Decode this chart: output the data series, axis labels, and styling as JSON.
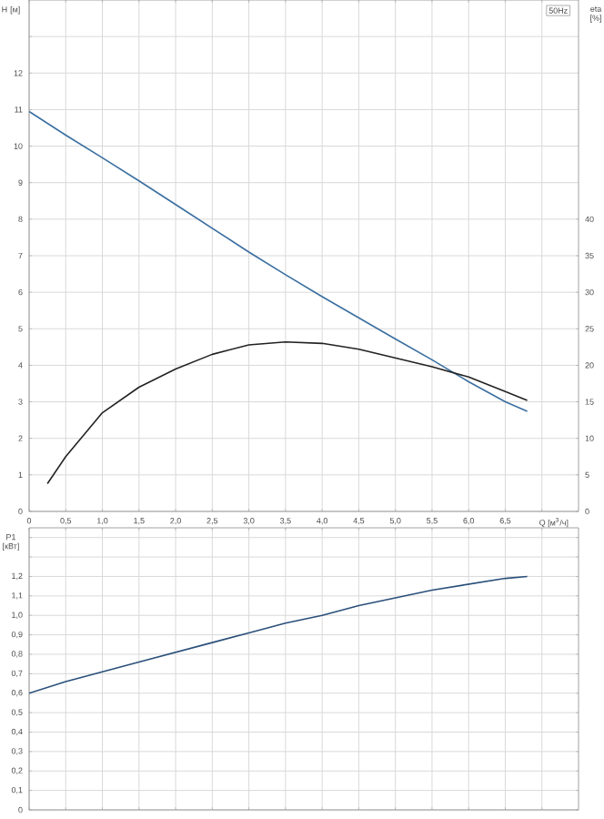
{
  "chart_data": [
    {
      "type": "line",
      "xlabel": "Q [м$^{3}$/ч]",
      "ylabel": "H [м]",
      "y2label": "eta [%]",
      "annotations": [
        "50Hz"
      ],
      "xlim": [
        0,
        7.5
      ],
      "ylim": [
        0,
        14
      ],
      "y2lim": [
        0,
        70
      ],
      "grid": true,
      "xticks": [
        0,
        {
          "value": 0.5,
          "label": "0,5"
        },
        {
          "value": 1.0,
          "label": "1,0"
        },
        {
          "value": 1.5,
          "label": "1,5"
        },
        {
          "value": 2.0,
          "label": "2,0"
        },
        {
          "value": 2.5,
          "label": "2,5"
        },
        {
          "value": 3.0,
          "label": "3,0"
        },
        {
          "value": 3.5,
          "label": "3,5"
        },
        {
          "value": 4.0,
          "label": "4,0"
        },
        {
          "value": 4.5,
          "label": "4,5"
        },
        {
          "value": 5.0,
          "label": "5,0"
        },
        {
          "value": 5.5,
          "label": "5,5"
        },
        {
          "value": 6.0,
          "label": "6,0"
        },
        {
          "value": 6.5,
          "label": "6,5"
        },
        {
          "value": 7.0,
          "label": null
        }
      ],
      "yticks": [
        0,
        1,
        2,
        3,
        4,
        5,
        6,
        7,
        8,
        9,
        10,
        11,
        12,
        {
          "value": 13,
          "label": null
        }
      ],
      "y2ticks": [
        0,
        5,
        10,
        15,
        20,
        25,
        30,
        35,
        40
      ],
      "series": [
        {
          "color": "#3a6fa0",
          "x": [
            0,
            0.5,
            1.0,
            1.5,
            2.0,
            2.5,
            3.0,
            3.5,
            4.0,
            4.5,
            5.0,
            5.5,
            6.0,
            6.5,
            6.8
          ],
          "values": [
            10.95,
            10.3,
            9.68,
            9.05,
            8.4,
            7.75,
            7.1,
            6.48,
            5.88,
            5.3,
            4.72,
            4.15,
            3.55,
            3.0,
            2.74
          ]
        },
        {
          "color": "#222222",
          "axis": "y2",
          "x": [
            0.25,
            0.5,
            1.0,
            1.5,
            2.0,
            2.5,
            3.0,
            3.5,
            4.0,
            4.5,
            5.0,
            5.5,
            6.0,
            6.5,
            6.8
          ],
          "values": [
            3.8,
            7.5,
            13.5,
            17,
            19.5,
            21.5,
            22.8,
            23.2,
            23.0,
            22.2,
            21.0,
            19.8,
            18.4,
            16.4,
            15.2
          ]
        }
      ]
    },
    {
      "type": "line",
      "ylabel": "P1 [кВт]",
      "tick_labels": "y",
      "xlim": [
        0,
        7.5
      ],
      "ylim": [
        0,
        1.45
      ],
      "grid": true,
      "xticks": [
        0,
        0.5,
        1.0,
        1.5,
        2.0,
        2.5,
        3.0,
        3.5,
        4.0,
        4.5,
        5.0,
        5.5,
        6.0,
        6.5,
        7.0
      ],
      "yticks": [
        0,
        {
          "value": 0.1,
          "label": "0,1"
        },
        {
          "value": 0.2,
          "label": "0,2"
        },
        {
          "value": 0.3,
          "label": "0,3"
        },
        {
          "value": 0.4,
          "label": "0,4"
        },
        {
          "value": 0.5,
          "label": "0,5"
        },
        {
          "value": 0.6,
          "label": "0,6"
        },
        {
          "value": 0.7,
          "label": "0,7"
        },
        {
          "value": 0.8,
          "label": "0,8"
        },
        {
          "value": 0.9,
          "label": "0,9"
        },
        {
          "value": 1.0,
          "label": "1,0"
        },
        {
          "value": 1.1,
          "label": "1,1"
        },
        {
          "value": 1.2,
          "label": "1,2"
        },
        {
          "value": 1.3,
          "label": null
        },
        {
          "value": 1.4,
          "label": null
        }
      ],
      "series": [
        {
          "color": "#2a4f7a",
          "x": [
            0,
            0.5,
            1.0,
            1.5,
            2.0,
            2.5,
            3.0,
            3.5,
            4.0,
            4.5,
            5.0,
            5.5,
            6.0,
            6.5,
            6.8
          ],
          "values": [
            0.6,
            0.66,
            0.71,
            0.76,
            0.81,
            0.86,
            0.91,
            0.96,
            1.0,
            1.05,
            1.09,
            1.13,
            1.16,
            1.19,
            1.2
          ]
        }
      ]
    }
  ]
}
